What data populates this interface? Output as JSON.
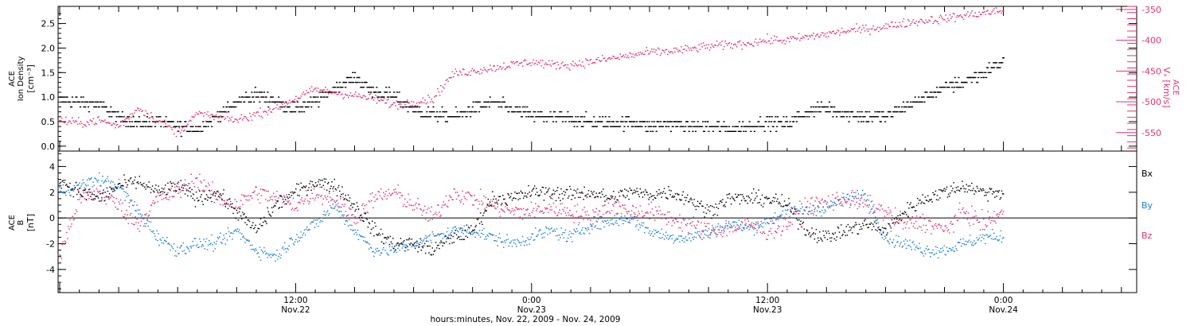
{
  "chart_data": [
    {
      "type": "scatter",
      "panel": "top",
      "grid": false,
      "x_range_hours": [
        0,
        48
      ],
      "ylabel_lines": [
        "ACE",
        "Ion Density",
        "[cm⁻³]"
      ],
      "ylim": [
        -0.1,
        2.85
      ],
      "yticks": [
        "0.0",
        "0.5",
        "1.0",
        "1.5",
        "2.0",
        "2.5"
      ],
      "y2label_lines": [
        "ACE",
        "Vₓ [km/s]"
      ],
      "y2lim": [
        -580,
        -345
      ],
      "y2ticks": [
        "-350",
        "-400",
        "-450",
        "-500",
        "-550"
      ],
      "colors": {
        "density": "#000000",
        "vx": "#e0356a"
      },
      "series": [
        {
          "name": "",
          "axis": "left",
          "color": "#000000",
          "x": [
            0,
            1,
            2,
            3,
            4,
            5,
            6,
            7,
            8,
            9,
            10,
            11,
            12,
            13,
            14,
            15,
            16,
            17,
            18,
            19,
            20,
            21,
            22,
            23,
            24,
            25,
            26,
            27,
            28,
            29,
            30,
            31,
            32,
            33,
            34,
            35,
            36,
            37,
            38,
            39,
            40,
            41,
            42,
            43,
            44,
            45,
            46,
            47,
            48
          ],
          "y": [
            0.95,
            0.9,
            0.85,
            0.6,
            0.45,
            0.5,
            0.4,
            0.35,
            0.6,
            0.9,
            1.05,
            0.9,
            0.75,
            0.9,
            1.2,
            1.4,
            1.1,
            1.0,
            0.75,
            0.65,
            0.6,
            0.75,
            0.9,
            0.75,
            0.6,
            0.6,
            0.55,
            0.5,
            0.45,
            0.5,
            0.4,
            0.45,
            0.4,
            0.4,
            0.35,
            0.4,
            0.5,
            0.45,
            0.7,
            0.8,
            0.65,
            0.6,
            0.6,
            0.8,
            1.0,
            1.2,
            1.3,
            1.5,
            1.75
          ]
        },
        {
          "name": "",
          "axis": "right",
          "color": "#e0356a",
          "x": [
            0,
            1,
            2,
            3,
            4,
            5,
            6,
            7,
            8,
            9,
            10,
            11,
            12,
            13,
            14,
            15,
            16,
            17,
            18,
            19,
            20,
            21,
            22,
            23,
            24,
            25,
            26,
            27,
            28,
            29,
            30,
            31,
            32,
            33,
            34,
            35,
            36,
            37,
            38,
            39,
            40,
            41,
            42,
            43,
            44,
            45,
            46,
            47,
            48
          ],
          "y": [
            -530,
            -535,
            -530,
            -540,
            -510,
            -530,
            -550,
            -520,
            -525,
            -530,
            -520,
            -510,
            -495,
            -480,
            -485,
            -490,
            -495,
            -505,
            -500,
            -495,
            -455,
            -450,
            -445,
            -440,
            -435,
            -440,
            -440,
            -435,
            -430,
            -425,
            -420,
            -418,
            -415,
            -410,
            -408,
            -405,
            -400,
            -400,
            -395,
            -390,
            -385,
            -382,
            -378,
            -372,
            -368,
            -365,
            -360,
            -356,
            -352
          ]
        }
      ]
    },
    {
      "type": "scatter",
      "panel": "bottom",
      "grid": false,
      "ylabel_lines": [
        "ACE",
        "B",
        "[nT]"
      ],
      "ylim": [
        -5.8,
        5.2
      ],
      "yticks": [
        "4",
        "2",
        "0",
        "-2",
        "-4"
      ],
      "xticks": [
        {
          "x": 12,
          "time": "12:00",
          "date": "Nov.22"
        },
        {
          "x": 24,
          "time": "0:00",
          "date": "Nov.23"
        },
        {
          "x": 36,
          "time": "12:00",
          "date": "Nov.23"
        },
        {
          "x": 48,
          "time": "0:00",
          "date": "Nov.24"
        }
      ],
      "xlabel": "hours:minutes, Nov. 22, 2009 - Nov. 24, 2009",
      "legend_position": "right",
      "colors": {
        "bx": "#000000",
        "by": "#1f7fd6",
        "bz": "#e0356a"
      },
      "series": [
        {
          "name": "Bx",
          "color": "#000000",
          "x": [
            0,
            1,
            2,
            3,
            4,
            5,
            6,
            7,
            8,
            9,
            10,
            11,
            12,
            13,
            14,
            15,
            16,
            17,
            18,
            19,
            20,
            21,
            22,
            23,
            24,
            25,
            26,
            27,
            28,
            29,
            30,
            31,
            32,
            33,
            34,
            35,
            36,
            37,
            38,
            39,
            40,
            41,
            42,
            43,
            44,
            45,
            46,
            47,
            48
          ],
          "y": [
            3.0,
            2.0,
            1.5,
            2.5,
            2.8,
            2.0,
            2.5,
            1.5,
            2.0,
            0.5,
            -1.0,
            1.0,
            2.0,
            2.8,
            2.5,
            1.0,
            -1.0,
            -2.0,
            -2.0,
            -2.5,
            -1.5,
            -1.0,
            1.5,
            1.5,
            2.0,
            2.0,
            1.8,
            2.0,
            1.5,
            2.0,
            1.8,
            2.0,
            1.5,
            0.5,
            1.5,
            1.5,
            1.5,
            1.0,
            -1.0,
            -1.5,
            -1.0,
            -0.5,
            -1.0,
            0.5,
            1.5,
            2.0,
            2.5,
            2.0,
            2.0
          ]
        },
        {
          "name": "By",
          "color": "#1f7fd6",
          "x": [
            0,
            1,
            2,
            3,
            4,
            5,
            6,
            7,
            8,
            9,
            10,
            11,
            12,
            13,
            14,
            15,
            16,
            17,
            18,
            19,
            20,
            21,
            22,
            23,
            24,
            25,
            26,
            27,
            28,
            29,
            30,
            31,
            32,
            33,
            34,
            35,
            36,
            37,
            38,
            39,
            40,
            41,
            42,
            43,
            44,
            45,
            46,
            47,
            48
          ],
          "y": [
            2.0,
            2.5,
            3.0,
            2.5,
            0.5,
            -1.5,
            -2.5,
            -2.0,
            -2.0,
            -1.0,
            -2.5,
            -3.0,
            -1.5,
            -0.5,
            1.0,
            -1.0,
            -2.5,
            -2.5,
            -2.0,
            -1.5,
            -1.0,
            -1.0,
            -1.5,
            -2.0,
            -1.5,
            -1.0,
            -1.5,
            -0.5,
            -0.3,
            0.0,
            -1.0,
            -1.5,
            -1.5,
            -1.2,
            -0.5,
            -0.8,
            -0.3,
            0.5,
            0.5,
            0.8,
            1.5,
            1.8,
            -1.5,
            -2.0,
            -2.5,
            -2.5,
            -2.0,
            -1.5,
            -1.5
          ]
        },
        {
          "name": "Bz",
          "color": "#e0356a",
          "x": [
            0,
            1,
            2,
            3,
            4,
            5,
            6,
            7,
            8,
            9,
            10,
            11,
            12,
            13,
            14,
            15,
            16,
            17,
            18,
            19,
            20,
            21,
            22,
            23,
            24,
            25,
            26,
            27,
            28,
            29,
            30,
            31,
            32,
            33,
            34,
            35,
            36,
            37,
            38,
            39,
            40,
            41,
            42,
            43,
            44,
            45,
            46,
            47,
            48
          ],
          "y": [
            -3.0,
            1.5,
            2.0,
            1.0,
            -0.5,
            1.5,
            2.0,
            3.0,
            1.5,
            1.0,
            2.0,
            1.5,
            1.0,
            2.0,
            1.5,
            0.0,
            1.5,
            2.0,
            1.0,
            0.0,
            2.0,
            1.5,
            1.0,
            0.5,
            0.5,
            0.8,
            0.5,
            0.0,
            1.0,
            0.5,
            0.5,
            0.0,
            -0.5,
            -1.0,
            -0.8,
            -0.5,
            -1.0,
            -0.5,
            1.0,
            1.2,
            1.5,
            1.0,
            0.5,
            -0.5,
            -0.3,
            -1.0,
            0.5,
            -0.5,
            0.5
          ]
        }
      ]
    }
  ]
}
